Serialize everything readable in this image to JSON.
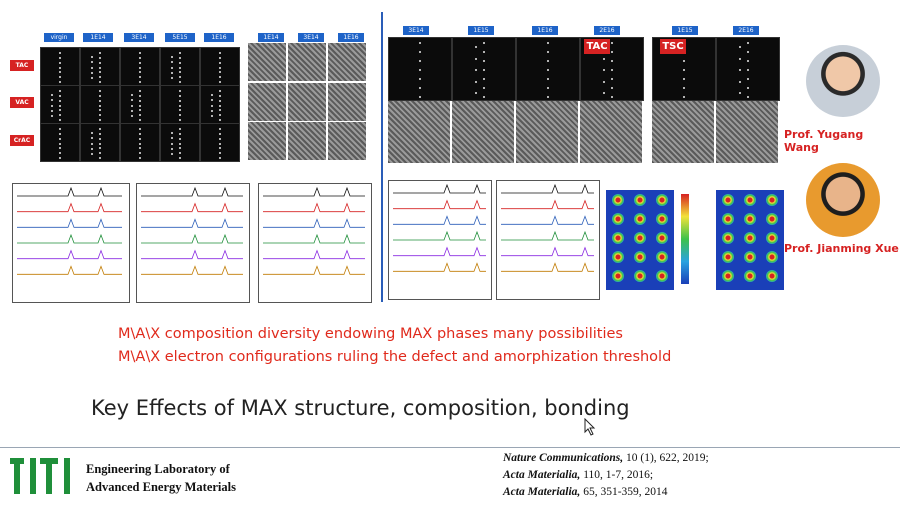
{
  "left_figure": {
    "top_tags": [
      "virgin",
      "1E14",
      "3E14",
      "5E15",
      "1E16"
    ],
    "right_tags": [
      "1E14",
      "3E14",
      "1E16"
    ],
    "row_labels": [
      "TAC",
      "VAC",
      "CrAC"
    ]
  },
  "right_figure": {
    "top_tags": [
      "3E14",
      "1E15",
      "1E16",
      "2E16",
      "1E15",
      "2E16"
    ],
    "tac_label": "TAC",
    "tsc_label": "TSC"
  },
  "people": [
    {
      "name": "Prof. Yugang Wang"
    },
    {
      "name": "Prof. Jianming Xue"
    }
  ],
  "highlights": [
    "M\\A\\X composition diversity endowing MAX phases many possibilities",
    "M\\A\\X electron configurations ruling the defect and amorphization threshold"
  ],
  "title": "Key Effects of MAX structure, composition, bonding",
  "lab": {
    "line1": "Engineering Laboratory of",
    "line2": "Advanced Energy Materials"
  },
  "references": [
    {
      "journal": "Nature Communications,",
      "detail": " 10 (1), 622, 2019;"
    },
    {
      "journal": "Acta Materialia,",
      "detail": " 110, 1-7, 2016;"
    },
    {
      "journal": "Acta Materialia,",
      "detail": " 65, 351-359, 2014"
    }
  ],
  "colors": {
    "accent_red": "#e02a1c",
    "tag_blue": "#1e63c8",
    "divider": "#2a5db8"
  }
}
